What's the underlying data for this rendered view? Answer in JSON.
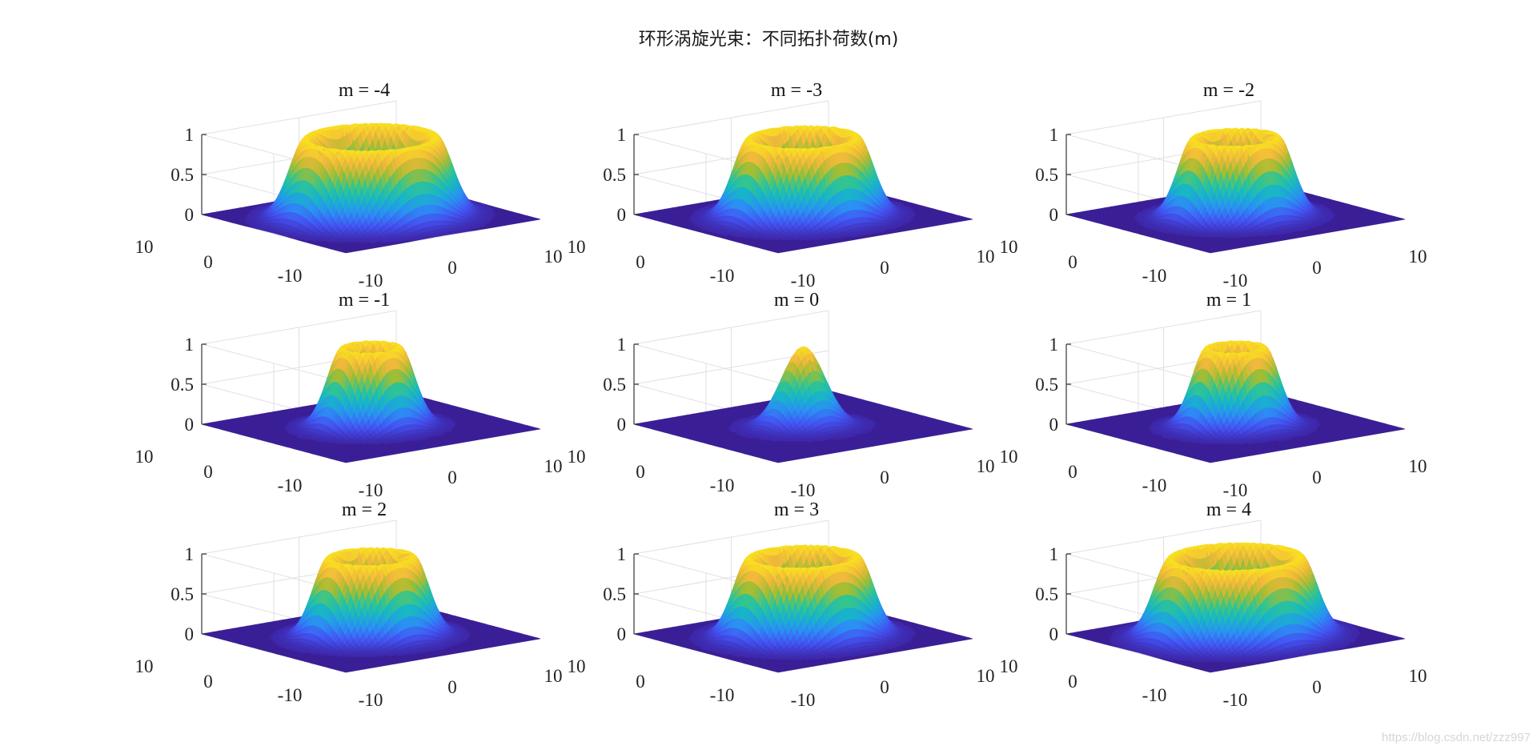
{
  "figure": {
    "suptitle": "环形涡旋光束：不同拓扑荷数(m)",
    "watermark": "https://blog.csdn.net/zzz997"
  },
  "colors": {
    "base": "#3b1f97",
    "colormap": [
      "#3e26a8",
      "#4353f2",
      "#2c8ef4",
      "#17b5c9",
      "#33c58f",
      "#a4bd32",
      "#f2b93b",
      "#f9e31e"
    ]
  },
  "chart_data": [
    {
      "type": "surface",
      "title": "m = -4",
      "m": -4,
      "x_ticks": [
        "-10",
        "0",
        "10"
      ],
      "y_ticks": [
        "-10",
        "0",
        "10"
      ],
      "z_ticks": [
        "0",
        "0.5",
        "1"
      ],
      "zlim": [
        0,
        1
      ],
      "grid": true
    },
    {
      "type": "surface",
      "title": "m = -3",
      "m": -3,
      "x_ticks": [
        "-10",
        "0",
        "10"
      ],
      "y_ticks": [
        "-10",
        "0",
        "10"
      ],
      "z_ticks": [
        "0",
        "0.5",
        "1"
      ],
      "zlim": [
        0,
        1
      ],
      "grid": true
    },
    {
      "type": "surface",
      "title": "m = -2",
      "m": -2,
      "x_ticks": [
        "-10",
        "0",
        "10"
      ],
      "y_ticks": [
        "-10",
        "0",
        "10"
      ],
      "z_ticks": [
        "0",
        "0.5",
        "1"
      ],
      "zlim": [
        0,
        1
      ],
      "grid": true
    },
    {
      "type": "surface",
      "title": "m = -1",
      "m": -1,
      "x_ticks": [
        "-10",
        "0",
        "10"
      ],
      "y_ticks": [
        "-10",
        "0",
        "10"
      ],
      "z_ticks": [
        "0",
        "0.5",
        "1"
      ],
      "zlim": [
        0,
        1
      ],
      "grid": true
    },
    {
      "type": "surface",
      "title": "m = 0",
      "m": 0,
      "x_ticks": [
        "-10",
        "0",
        "10"
      ],
      "y_ticks": [
        "-10",
        "0",
        "10"
      ],
      "z_ticks": [
        "0",
        "0.5",
        "1"
      ],
      "zlim": [
        0,
        1
      ],
      "grid": true
    },
    {
      "type": "surface",
      "title": "m = 1",
      "m": 1,
      "x_ticks": [
        "-10",
        "0",
        "10"
      ],
      "y_ticks": [
        "-10",
        "0",
        "10"
      ],
      "z_ticks": [
        "0",
        "0.5",
        "1"
      ],
      "zlim": [
        0,
        1
      ],
      "grid": true
    },
    {
      "type": "surface",
      "title": "m = 2",
      "m": 2,
      "x_ticks": [
        "-10",
        "0",
        "10"
      ],
      "y_ticks": [
        "-10",
        "0",
        "10"
      ],
      "z_ticks": [
        "0",
        "0.5",
        "1"
      ],
      "zlim": [
        0,
        1
      ],
      "grid": true
    },
    {
      "type": "surface",
      "title": "m = 3",
      "m": 3,
      "x_ticks": [
        "-10",
        "0",
        "10"
      ],
      "y_ticks": [
        "-10",
        "0",
        "10"
      ],
      "z_ticks": [
        "0",
        "0.5",
        "1"
      ],
      "zlim": [
        0,
        1
      ],
      "grid": true
    },
    {
      "type": "surface",
      "title": "m = 4",
      "m": 4,
      "x_ticks": [
        "-10",
        "0",
        "10"
      ],
      "y_ticks": [
        "-10",
        "0",
        "10"
      ],
      "z_ticks": [
        "0",
        "0.5",
        "1"
      ],
      "zlim": [
        0,
        1
      ],
      "grid": true
    }
  ]
}
